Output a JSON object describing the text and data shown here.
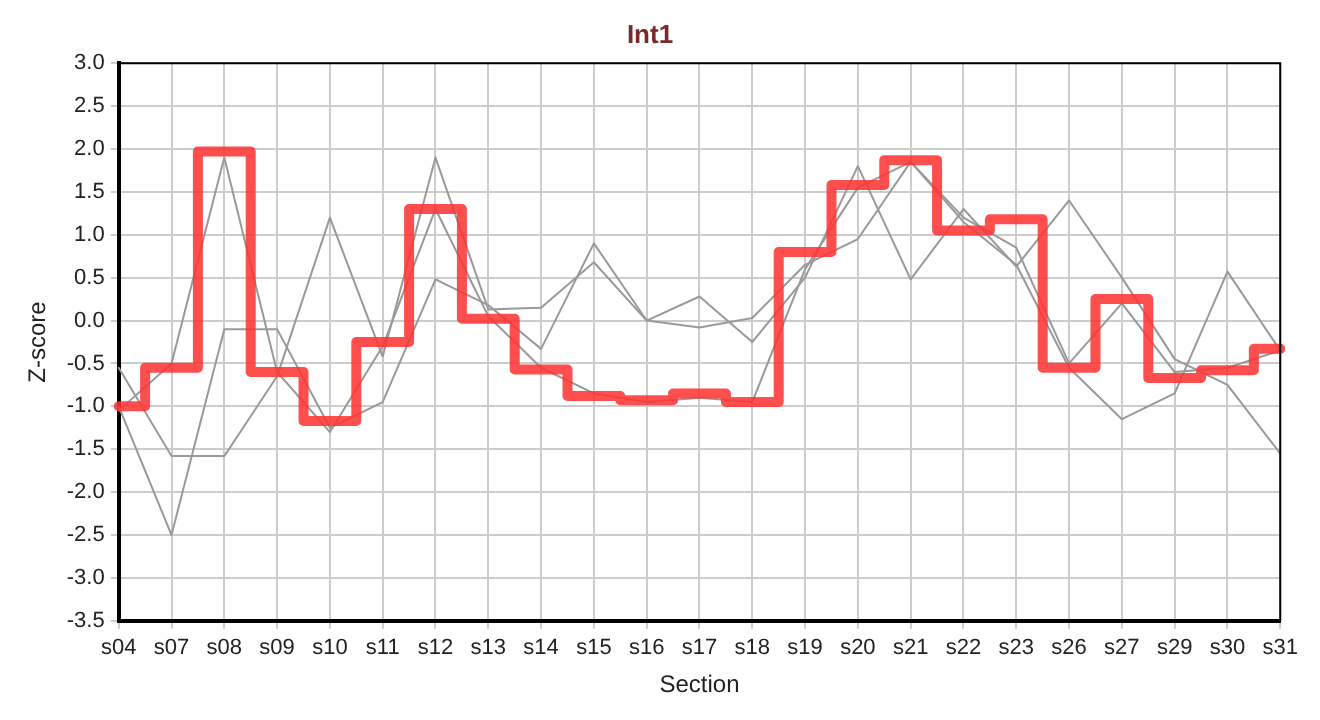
{
  "chart_data": {
    "type": "line",
    "title": "Int1",
    "xlabel": "Section",
    "ylabel": "Z-score",
    "categories": [
      "s04",
      "s07",
      "s08",
      "s09",
      "s10",
      "s11",
      "s12",
      "s13",
      "s14",
      "s15",
      "s16",
      "s17",
      "s18",
      "s19",
      "s20",
      "s21",
      "s22",
      "s23",
      "s26",
      "s27",
      "s29",
      "s30",
      "s31"
    ],
    "series": [
      {
        "type": "line",
        "color": "#999999",
        "values": [
          -0.55,
          -1.58,
          -1.58,
          -0.65,
          1.2,
          -0.42,
          1.9,
          0.13,
          0.15,
          0.68,
          0.0,
          0.28,
          -0.25,
          0.5,
          1.8,
          0.48,
          1.3,
          0.63,
          1.4,
          0.5,
          -0.45,
          -0.75,
          -1.55
        ]
      },
      {
        "type": "line",
        "color": "#999999",
        "values": [
          -1.0,
          -2.5,
          -0.1,
          -0.1,
          -1.25,
          -0.95,
          0.48,
          0.18,
          -0.33,
          0.9,
          0.0,
          -0.08,
          0.03,
          0.65,
          0.95,
          1.85,
          1.15,
          0.65,
          -0.55,
          -1.15,
          -0.85,
          0.57,
          -0.35
        ]
      },
      {
        "type": "line",
        "color": "#999999",
        "values": [
          -1.05,
          -0.5,
          1.9,
          -0.6,
          -1.3,
          -0.3,
          1.3,
          0.05,
          -0.55,
          -0.85,
          -0.95,
          -0.9,
          -0.95,
          0.6,
          1.55,
          1.85,
          1.2,
          0.85,
          -0.5,
          0.2,
          -0.6,
          -0.55,
          -0.35
        ]
      },
      {
        "type": "step",
        "color": "#ff3333",
        "values": [
          -1.0,
          -0.55,
          1.97,
          -0.6,
          -1.17,
          -0.25,
          1.3,
          0.02,
          -0.57,
          -0.88,
          -0.93,
          -0.85,
          -0.95,
          0.8,
          1.58,
          1.87,
          1.05,
          1.18,
          -0.55,
          0.25,
          -0.67,
          -0.58,
          -0.33
        ]
      }
    ],
    "ylim": [
      -3.5,
      3.0
    ],
    "yticks": [
      {
        "value": -3.5,
        "label": "-3.5"
      },
      {
        "value": -3,
        "label": "-3.0"
      },
      {
        "value": -2.5,
        "label": "-2.5"
      },
      {
        "value": -2,
        "label": "-2.0"
      },
      {
        "value": -1.5,
        "label": "-1.5"
      },
      {
        "value": -1,
        "label": "-1.0"
      },
      {
        "value": -0.5,
        "label": "-0.5"
      },
      {
        "value": 0,
        "label": "0.0"
      },
      {
        "value": 0.5,
        "label": "0.5"
      },
      {
        "value": 1,
        "label": "1.0"
      },
      {
        "value": 1.5,
        "label": "1.5"
      },
      {
        "value": 2,
        "label": "2.0"
      },
      {
        "value": 2.5,
        "label": "2.5"
      },
      {
        "value": 3,
        "label": "3.0"
      }
    ],
    "grid": true,
    "marker": "none",
    "line_style": "solid"
  }
}
